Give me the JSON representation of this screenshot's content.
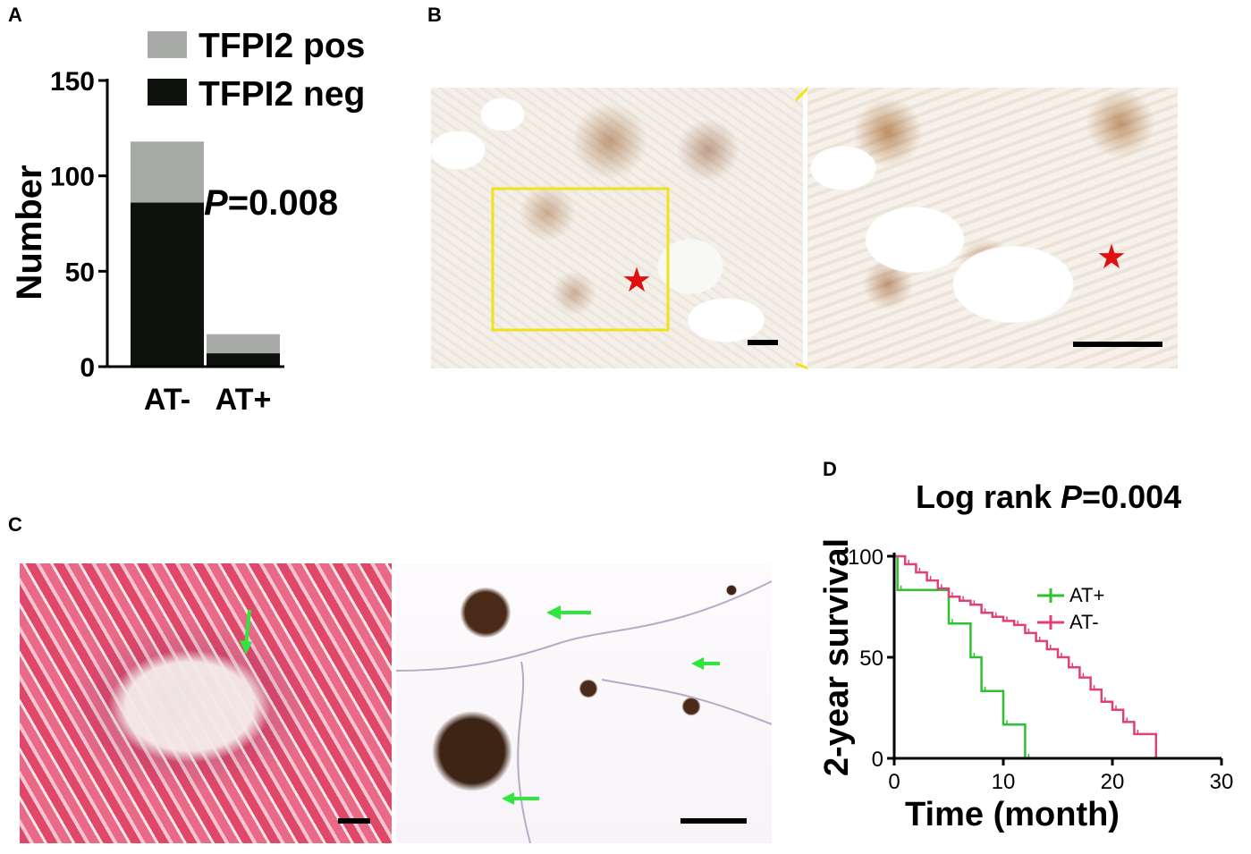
{
  "panels": {
    "a": "A",
    "b": "B",
    "c": "C",
    "d": "D"
  },
  "chart_data": [
    {
      "type": "bar",
      "stacked": true,
      "categories": [
        "AT-",
        "AT+"
      ],
      "series": [
        {
          "name": "TFPI2 neg",
          "values": [
            86,
            7
          ],
          "color": "#0d120d"
        },
        {
          "name": "TFPI2 pos",
          "values": [
            32,
            10
          ],
          "color": "#a8aaa8"
        }
      ],
      "ylabel": "Number",
      "ylim": [
        0,
        150
      ],
      "yticks": [
        0,
        50,
        100,
        150
      ],
      "legend_position": "top",
      "annotation_prefix": "P",
      "annotation_value": "=0.008"
    },
    {
      "type": "line",
      "step": true,
      "annotation_prefix": "Log rank ",
      "annotation_p": "P",
      "annotation_value": "=0.004",
      "xlabel": "Time (month)",
      "ylabel": "2-year survival",
      "xlim": [
        0,
        30
      ],
      "ylim": [
        0,
        100
      ],
      "xticks": [
        0,
        10,
        20,
        30
      ],
      "yticks": [
        0,
        50,
        100
      ],
      "legend_position": "top-right",
      "series": [
        {
          "name": "AT+",
          "color": "#2fc02f",
          "x": [
            0,
            0.3,
            5,
            7,
            8,
            10,
            12,
            12
          ],
          "y": [
            100,
            83.3,
            66.7,
            50,
            33.3,
            16.7,
            0,
            0
          ]
        },
        {
          "name": "AT-",
          "color": "#e0407a",
          "x": [
            0,
            1,
            2,
            3,
            4,
            5,
            6,
            7,
            8,
            9,
            10,
            11,
            12,
            13,
            14,
            15,
            16,
            17,
            18,
            19,
            20,
            21,
            22,
            24
          ],
          "y": [
            100,
            96,
            92,
            88,
            84,
            80,
            78,
            76,
            72,
            70,
            68,
            66,
            62,
            58,
            54,
            50,
            45,
            40,
            34,
            28,
            24,
            18,
            12,
            0
          ]
        }
      ]
    }
  ]
}
